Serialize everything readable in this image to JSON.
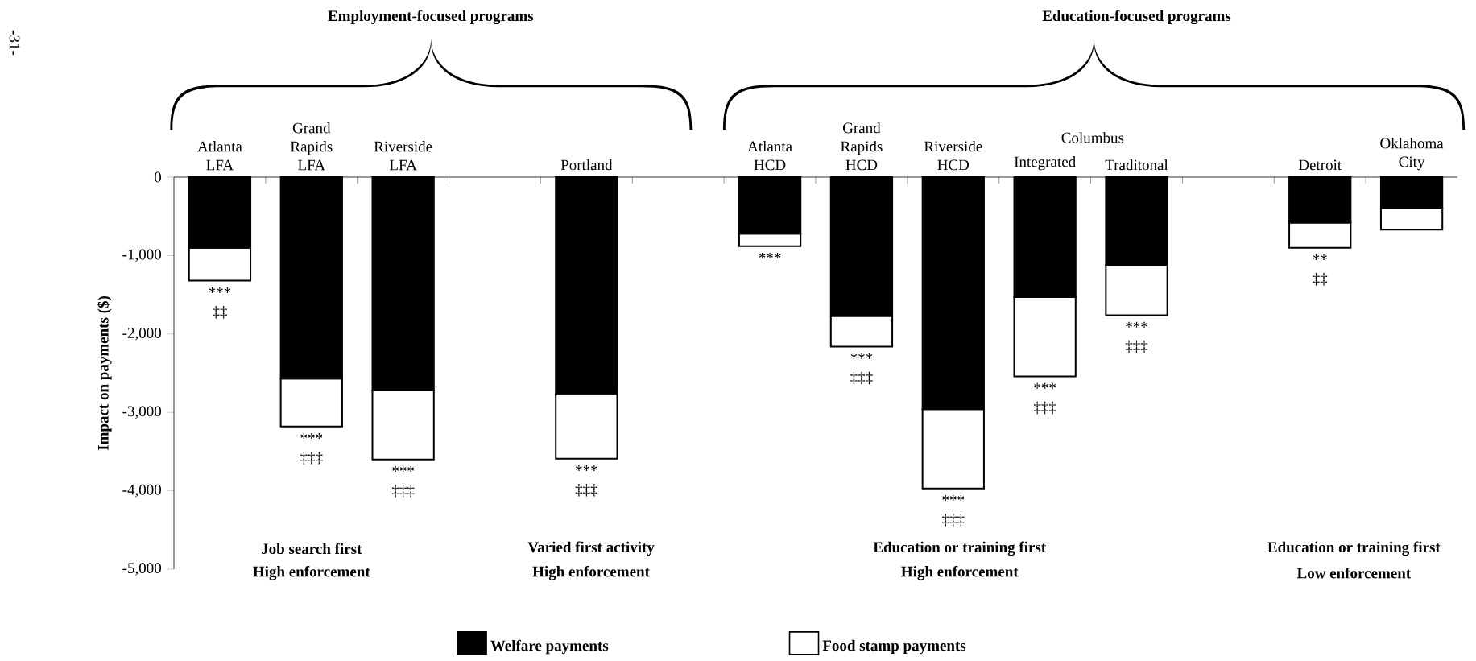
{
  "chart_data": {
    "type": "bar",
    "stacked": true,
    "ylabel": "Impact on payments ($)",
    "categories": [
      "Atlanta LFA",
      "Grand Rapids LFA",
      "Riverside LFA",
      null,
      "Portland",
      null,
      "Atlanta HCD",
      "Grand Rapids HCD",
      "Riverside HCD",
      "Integrated",
      "Traditonal",
      null,
      "Detroit",
      "Oklahoma City"
    ],
    "series": [
      {
        "name": "Welfare payments",
        "color": "#000000",
        "values": [
          -900,
          -2570,
          -2720,
          null,
          -2760,
          null,
          -720,
          -1770,
          -2960,
          -1530,
          -1120,
          null,
          -580,
          -400
        ]
      },
      {
        "name": "Food stamp payments",
        "color": "#ffffff",
        "values": [
          -420,
          -610,
          -880,
          null,
          -830,
          null,
          -160,
          -390,
          -1010,
          -1010,
          -640,
          null,
          -320,
          -270
        ]
      }
    ],
    "ylim": [
      -5000,
      0
    ],
    "yticks": [
      {
        "value": -5000,
        "label": "-5,000"
      },
      {
        "value": -4000,
        "label": "-4,000"
      },
      {
        "value": -3000,
        "label": "-3,000"
      },
      {
        "value": -2000,
        "label": "-2,000"
      },
      {
        "value": -1000,
        "label": "-1,000"
      },
      0
    ],
    "legend": "bottom",
    "annotations": [
      "Employment-focused programs",
      "Education-focused programs",
      "Columbus",
      "Job search first",
      "High enforcement",
      "Varied first activity",
      "High enforcement",
      "Education or training first",
      "High enforcement",
      "Education or training first",
      "Low enforcement",
      "-31-",
      {
        "text": "***",
        "x": "Atlanta LFA",
        "y": -1320
      },
      {
        "text": "‡‡",
        "x": "Atlanta LFA",
        "y": -1320
      },
      {
        "text": "***",
        "x": "Grand Rapids LFA",
        "y": -3180
      },
      {
        "text": "‡‡‡",
        "x": "Grand Rapids LFA",
        "y": -3180
      },
      {
        "text": "***",
        "x": "Riverside LFA",
        "y": -3600
      },
      {
        "text": "‡‡‡",
        "x": "Riverside LFA",
        "y": -3600
      },
      {
        "text": "***",
        "x": "Portland",
        "y": -3590
      },
      {
        "text": "‡‡‡",
        "x": "Portland",
        "y": -3590
      },
      {
        "text": "***",
        "x": "Atlanta HCD",
        "y": -880
      },
      {
        "text": "***",
        "x": "Grand Rapids HCD",
        "y": -2160
      },
      {
        "text": "‡‡‡",
        "x": "Grand Rapids HCD",
        "y": -2160
      },
      {
        "text": "***",
        "x": "Riverside HCD",
        "y": -3970
      },
      {
        "text": "‡‡‡",
        "x": "Riverside HCD",
        "y": -3970
      },
      {
        "text": "***",
        "x": "Integrated",
        "y": -2540
      },
      {
        "text": "‡‡‡",
        "x": "Integrated",
        "y": -2540
      },
      {
        "text": "***",
        "x": "Traditonal",
        "y": -1760
      },
      {
        "text": "‡‡‡",
        "x": "Traditonal",
        "y": -1760
      },
      {
        "text": "**",
        "x": "Detroit",
        "y": -900
      },
      {
        "text": "‡‡",
        "x": "Detroit",
        "y": -900
      }
    ]
  }
}
